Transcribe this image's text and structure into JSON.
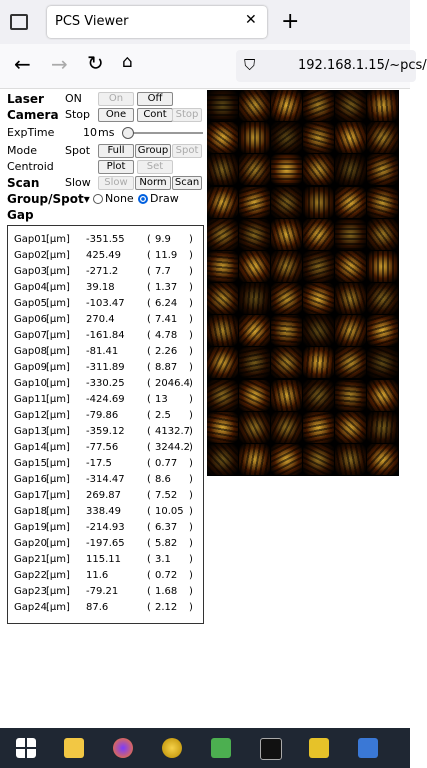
{
  "browser": {
    "tab_title": "PCS Viewer",
    "url": "192.168.1.15/~pcs/"
  },
  "controls": {
    "laser": {
      "label": "Laser",
      "state": "ON",
      "buttons": [
        "On",
        "Off"
      ]
    },
    "camera": {
      "label": "Camera",
      "state": "Stop",
      "buttons": [
        "One",
        "Cont",
        "Stop"
      ]
    },
    "exptime": {
      "label": "ExpTime",
      "value": "10",
      "unit": "ms"
    },
    "mode": {
      "label": "Mode",
      "state": "Spot",
      "buttons": [
        "Full",
        "Group",
        "Spot"
      ]
    },
    "centroid": {
      "label": "Centroid",
      "buttons": [
        "Plot",
        "Set"
      ]
    },
    "scan": {
      "label": "Scan",
      "state": "Slow",
      "buttons": [
        "Slow",
        "Norm",
        "Scan"
      ]
    },
    "group_spot": {
      "label": "Group/Spot▾",
      "options": [
        "None",
        "Draw"
      ]
    },
    "gap_label": "Gap"
  },
  "table": {
    "unit": "[μm]",
    "rows": [
      [
        "Gap01",
        "-351.55",
        "9.9"
      ],
      [
        "Gap02",
        "425.49",
        "11.9"
      ],
      [
        "Gap03",
        "-271.2",
        "7.7"
      ],
      [
        "Gap04",
        "39.18",
        "1.37"
      ],
      [
        "Gap05",
        "-103.47",
        "6.24"
      ],
      [
        "Gap06",
        "270.4",
        "7.41"
      ],
      [
        "Gap07",
        "-161.84",
        "4.78"
      ],
      [
        "Gap08",
        "-81.41",
        "2.26"
      ],
      [
        "Gap09",
        "-311.89",
        "8.87"
      ],
      [
        "Gap10",
        "-330.25",
        "2046.4"
      ],
      [
        "Gap11",
        "-424.69",
        "13"
      ],
      [
        "Gap12",
        "-79.86",
        "2.5"
      ],
      [
        "Gap13",
        "-359.12",
        "4132.7"
      ],
      [
        "Gap14",
        "-77.56",
        "3244.2"
      ],
      [
        "Gap15",
        "-17.5",
        "0.77"
      ],
      [
        "Gap16",
        "-314.47",
        "8.6"
      ],
      [
        "Gap17",
        "269.87",
        "7.52"
      ],
      [
        "Gap18",
        "338.49",
        "10.05"
      ],
      [
        "Gap19",
        "-214.93",
        "6.37"
      ],
      [
        "Gap20",
        "-197.65",
        "5.82"
      ],
      [
        "Gap21",
        "115.11",
        "3.1"
      ],
      [
        "Gap22",
        "11.6",
        "0.72"
      ],
      [
        "Gap23",
        "-79.21",
        "1.68"
      ],
      [
        "Gap24",
        "87.6",
        "2.12"
      ]
    ]
  }
}
